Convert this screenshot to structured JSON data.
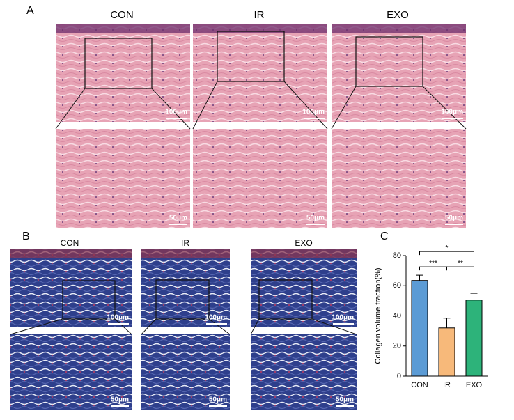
{
  "panel_a": {
    "label": "A",
    "groups": [
      "CON",
      "IR",
      "EXO"
    ],
    "scale_top": "100μm",
    "scale_bottom": "50μm"
  },
  "panel_b": {
    "label": "B",
    "groups": [
      "CON",
      "IR",
      "EXO"
    ],
    "scale_top": "100μm",
    "scale_bottom": "50μm"
  },
  "chart_data": {
    "type": "bar",
    "panel_label": "C",
    "y_label": "Collagen volume fraction(%)",
    "categories": [
      "CON",
      "IR",
      "EXO"
    ],
    "values": [
      63.5,
      32,
      50.5
    ],
    "errors": [
      3.5,
      6.5,
      4.5
    ],
    "colors": [
      "#5b9bd5",
      "#f7b97a",
      "#2db37a"
    ],
    "ylim": [
      0,
      80
    ],
    "yticks": [
      0,
      20,
      40,
      60,
      80
    ],
    "significance": [
      {
        "from": "CON",
        "to": "IR",
        "label": "***"
      },
      {
        "from": "IR",
        "to": "EXO",
        "label": "**"
      },
      {
        "from": "CON",
        "to": "EXO",
        "label": "*"
      }
    ]
  }
}
